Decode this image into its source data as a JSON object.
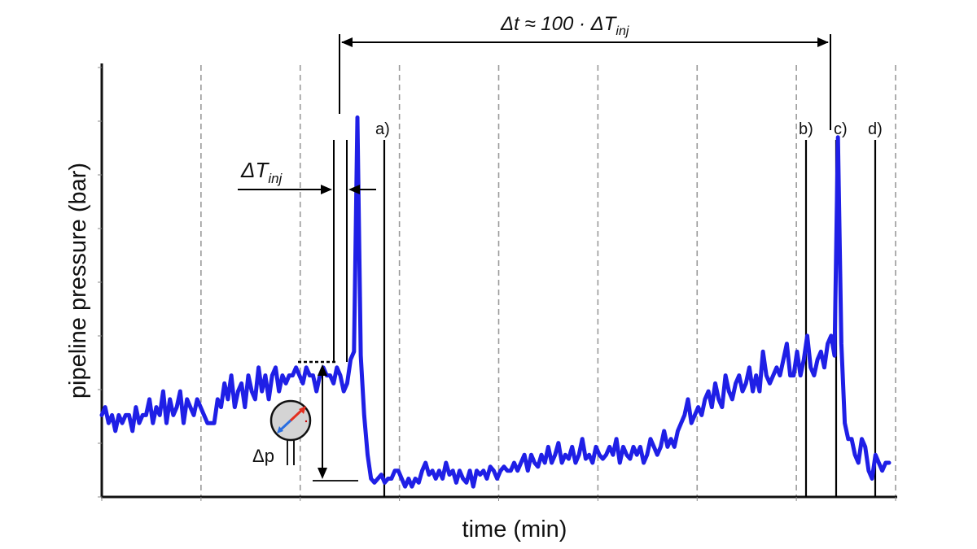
{
  "chart_data": {
    "type": "line",
    "title": "",
    "xlabel": "time (min)",
    "ylabel": "pipeline pressure (bar)",
    "grid": "vertical-dashed",
    "series": [
      {
        "color": "#1f1fe6",
        "y": [
          0.2,
          0.22,
          0.18,
          0.2,
          0.16,
          0.2,
          0.18,
          0.2,
          0.2,
          0.16,
          0.22,
          0.18,
          0.2,
          0.2,
          0.24,
          0.18,
          0.22,
          0.2,
          0.26,
          0.18,
          0.24,
          0.2,
          0.22,
          0.26,
          0.18,
          0.24,
          0.22,
          0.2,
          0.24,
          0.22,
          0.2,
          0.18,
          0.18,
          0.18,
          0.24,
          0.22,
          0.28,
          0.24,
          0.3,
          0.22,
          0.26,
          0.28,
          0.22,
          0.3,
          0.26,
          0.24,
          0.32,
          0.26,
          0.3,
          0.24,
          0.3,
          0.32,
          0.26,
          0.3,
          0.28,
          0.3,
          0.3,
          0.32,
          0.3,
          0.28,
          0.32,
          0.3,
          0.3,
          0.26,
          0.3,
          0.32,
          0.3,
          0.3,
          0.28,
          0.32,
          0.3,
          0.26,
          0.28,
          0.34,
          0.36,
          0.95,
          0.35,
          0.2,
          0.1,
          0.04,
          0.03,
          0.04,
          0.05,
          0.03,
          0.04,
          0.04,
          0.06,
          0.06,
          0.04,
          0.02,
          0.04,
          0.02,
          0.04,
          0.03,
          0.06,
          0.08,
          0.05,
          0.06,
          0.04,
          0.06,
          0.04,
          0.08,
          0.05,
          0.06,
          0.03,
          0.06,
          0.04,
          0.03,
          0.06,
          0.02,
          0.06,
          0.05,
          0.06,
          0.04,
          0.07,
          0.06,
          0.04,
          0.06,
          0.07,
          0.06,
          0.06,
          0.08,
          0.06,
          0.08,
          0.1,
          0.06,
          0.1,
          0.08,
          0.07,
          0.1,
          0.08,
          0.12,
          0.08,
          0.1,
          0.13,
          0.08,
          0.1,
          0.09,
          0.12,
          0.08,
          0.1,
          0.14,
          0.09,
          0.1,
          0.08,
          0.12,
          0.1,
          0.09,
          0.1,
          0.12,
          0.1,
          0.14,
          0.08,
          0.12,
          0.1,
          0.09,
          0.12,
          0.1,
          0.12,
          0.08,
          0.1,
          0.14,
          0.12,
          0.1,
          0.12,
          0.16,
          0.12,
          0.14,
          0.12,
          0.16,
          0.18,
          0.2,
          0.24,
          0.18,
          0.2,
          0.22,
          0.2,
          0.24,
          0.26,
          0.22,
          0.28,
          0.24,
          0.22,
          0.3,
          0.26,
          0.24,
          0.28,
          0.3,
          0.26,
          0.28,
          0.32,
          0.26,
          0.3,
          0.26,
          0.36,
          0.3,
          0.28,
          0.3,
          0.32,
          0.3,
          0.34,
          0.38,
          0.3,
          0.3,
          0.36,
          0.3,
          0.34,
          0.4,
          0.32,
          0.3,
          0.34,
          0.36,
          0.32,
          0.38,
          0.4,
          0.35,
          0.9,
          0.38,
          0.18,
          0.14,
          0.14,
          0.1,
          0.08,
          0.14,
          0.12,
          0.06,
          0.04,
          0.1,
          0.08,
          0.06,
          0.08,
          0.08
        ]
      }
    ],
    "grid_positions": [
      1,
      2,
      3,
      4,
      5,
      6,
      7,
      8
    ],
    "annotations": {
      "delta_t": "Δt ≈ 100 · ΔT",
      "delta_t_sub": "inj",
      "delta_T": "ΔT",
      "delta_T_sub": "inj",
      "delta_p": "Δp",
      "marker_a": "a)",
      "marker_b": "b)",
      "marker_c": "c)",
      "marker_d": "d)"
    },
    "icons": {
      "gauge": "pressure-gauge-icon"
    }
  }
}
